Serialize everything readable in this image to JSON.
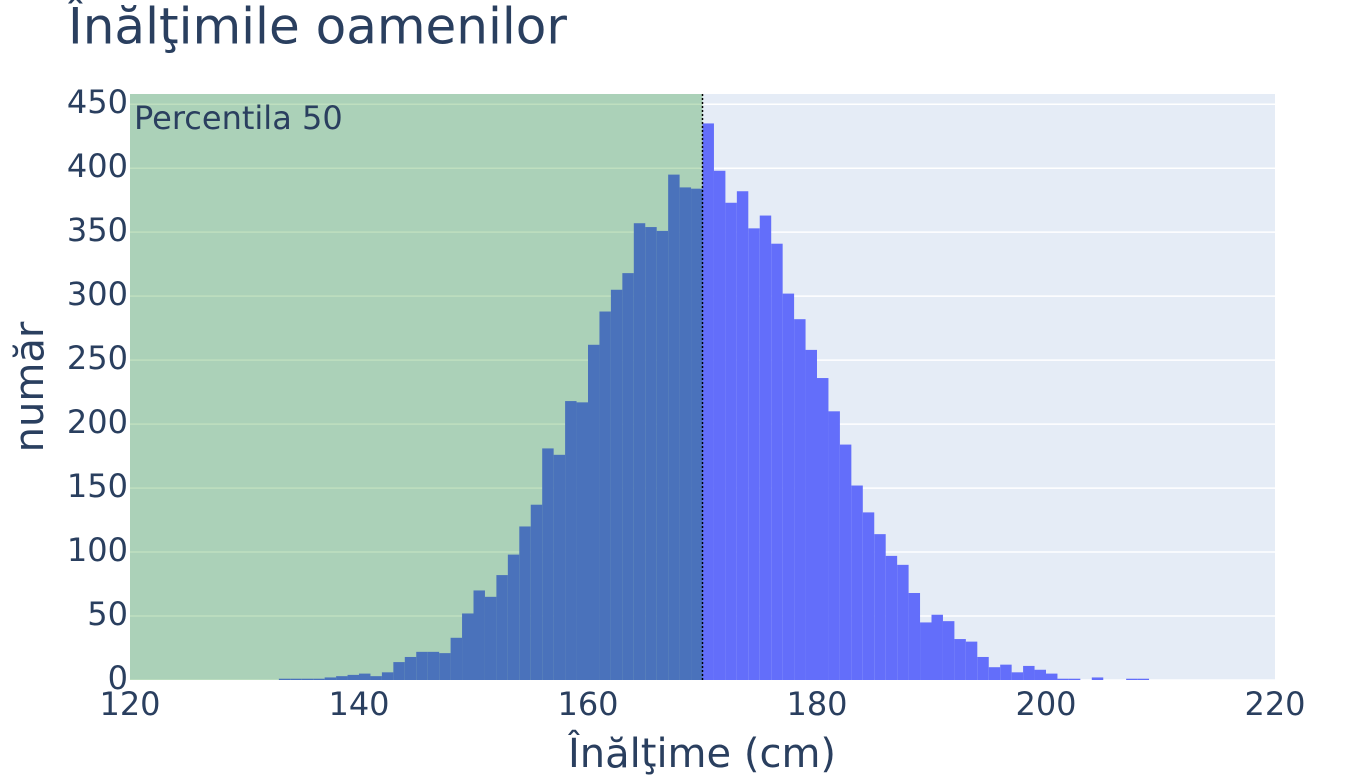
{
  "chart_data": {
    "type": "histogram",
    "title": "Înălţimile oamenilor",
    "x_label": "Înălţime (cm)",
    "y_label": "număr",
    "bins": [
      133,
      134,
      135,
      136,
      137,
      138,
      139,
      140,
      141,
      142,
      143,
      144,
      145,
      146,
      147,
      148,
      149,
      150,
      151,
      152,
      153,
      154,
      155,
      156,
      157,
      158,
      159,
      160,
      161,
      162,
      163,
      164,
      165,
      166,
      167,
      168,
      169,
      170,
      171,
      172,
      173,
      174,
      175,
      176,
      177,
      178,
      179,
      180,
      181,
      182,
      183,
      184,
      185,
      186,
      187,
      188,
      189,
      190,
      191,
      192,
      193,
      194,
      195,
      196,
      197,
      198,
      199,
      200,
      201,
      202,
      203,
      204,
      205,
      206,
      207,
      208,
      209
    ],
    "values": [
      1,
      1,
      1,
      1,
      2,
      3,
      4,
      5,
      3,
      6,
      14,
      18,
      22,
      22,
      21,
      33,
      52,
      70,
      65,
      82,
      98,
      120,
      137,
      181,
      176,
      218,
      217,
      262,
      288,
      305,
      318,
      357,
      354,
      351,
      395,
      385,
      384,
      435,
      398,
      373,
      382,
      353,
      363,
      341,
      302,
      282,
      258,
      236,
      210,
      184,
      152,
      131,
      114,
      97,
      90,
      68,
      45,
      51,
      46,
      32,
      30,
      18,
      10,
      12,
      6,
      11,
      8,
      5,
      1,
      1,
      0,
      2,
      0,
      0,
      1,
      1
    ],
    "color": "#636efa",
    "shade": {
      "x0": 120,
      "x1": 170,
      "label": "Percentila 50",
      "color": "#008000",
      "opacity": 0.25
    },
    "vline": 170,
    "xlim": [
      120,
      220
    ],
    "xticks": [
      120,
      140,
      160,
      180,
      200,
      220
    ],
    "ylim": [
      0,
      458
    ],
    "yticks": [
      0,
      50,
      100,
      150,
      200,
      250,
      300,
      350,
      400,
      450
    ],
    "grid": true
  }
}
